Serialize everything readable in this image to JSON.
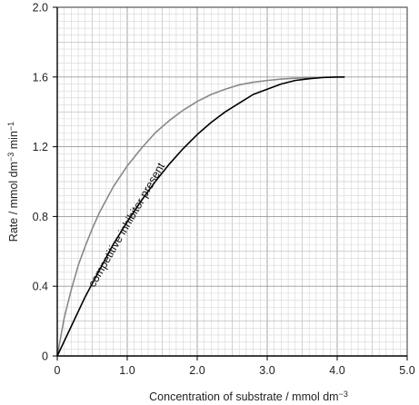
{
  "chart_data": {
    "type": "line",
    "title": "",
    "xlabel": {
      "main": "Concentration of substrate / mmol dm",
      "sup": "−3"
    },
    "ylabel": {
      "p1": "Rate / mmol dm",
      "s1": "−3",
      "p2": " min",
      "s2": "−1"
    },
    "xlim": [
      0,
      5.0
    ],
    "ylim": [
      0,
      2.0
    ],
    "x_ticks": [
      "0",
      "1.0",
      "2.0",
      "3.0",
      "4.0",
      "5.0"
    ],
    "y_ticks": [
      "0",
      "0.4",
      "0.8",
      "1.2",
      "1.6",
      "2.0"
    ],
    "grid": true,
    "series": [
      {
        "color": "#888888",
        "x": [
          0,
          0.05,
          0.1,
          0.2,
          0.3,
          0.4,
          0.5,
          0.6,
          0.8,
          1.0,
          1.2,
          1.4,
          1.6,
          1.8,
          2.0,
          2.2,
          2.4,
          2.6,
          2.8,
          3.0,
          3.2,
          3.4,
          3.6,
          3.8,
          4.0,
          4.1
        ],
        "y": [
          0,
          0.11,
          0.22,
          0.38,
          0.52,
          0.63,
          0.73,
          0.82,
          0.97,
          1.09,
          1.19,
          1.28,
          1.35,
          1.41,
          1.46,
          1.5,
          1.53,
          1.555,
          1.57,
          1.58,
          1.588,
          1.593,
          1.596,
          1.598,
          1.6,
          1.6
        ]
      },
      {
        "color": "#000000",
        "x": [
          0,
          0.2,
          0.4,
          0.6,
          0.8,
          1.0,
          1.2,
          1.4,
          1.6,
          1.8,
          2.0,
          2.2,
          2.4,
          2.6,
          2.8,
          3.0,
          3.2,
          3.4,
          3.6,
          3.8,
          4.0,
          4.1
        ],
        "y": [
          0,
          0.17,
          0.34,
          0.49,
          0.64,
          0.77,
          0.89,
          1.0,
          1.1,
          1.19,
          1.27,
          1.34,
          1.4,
          1.45,
          1.5,
          1.53,
          1.56,
          1.58,
          1.59,
          1.597,
          1.6,
          1.6
        ]
      }
    ],
    "annotations": [
      {
        "text": "competitive inhibitor present",
        "x": 0.53,
        "y": 0.39,
        "angle_deg": -60
      }
    ]
  }
}
